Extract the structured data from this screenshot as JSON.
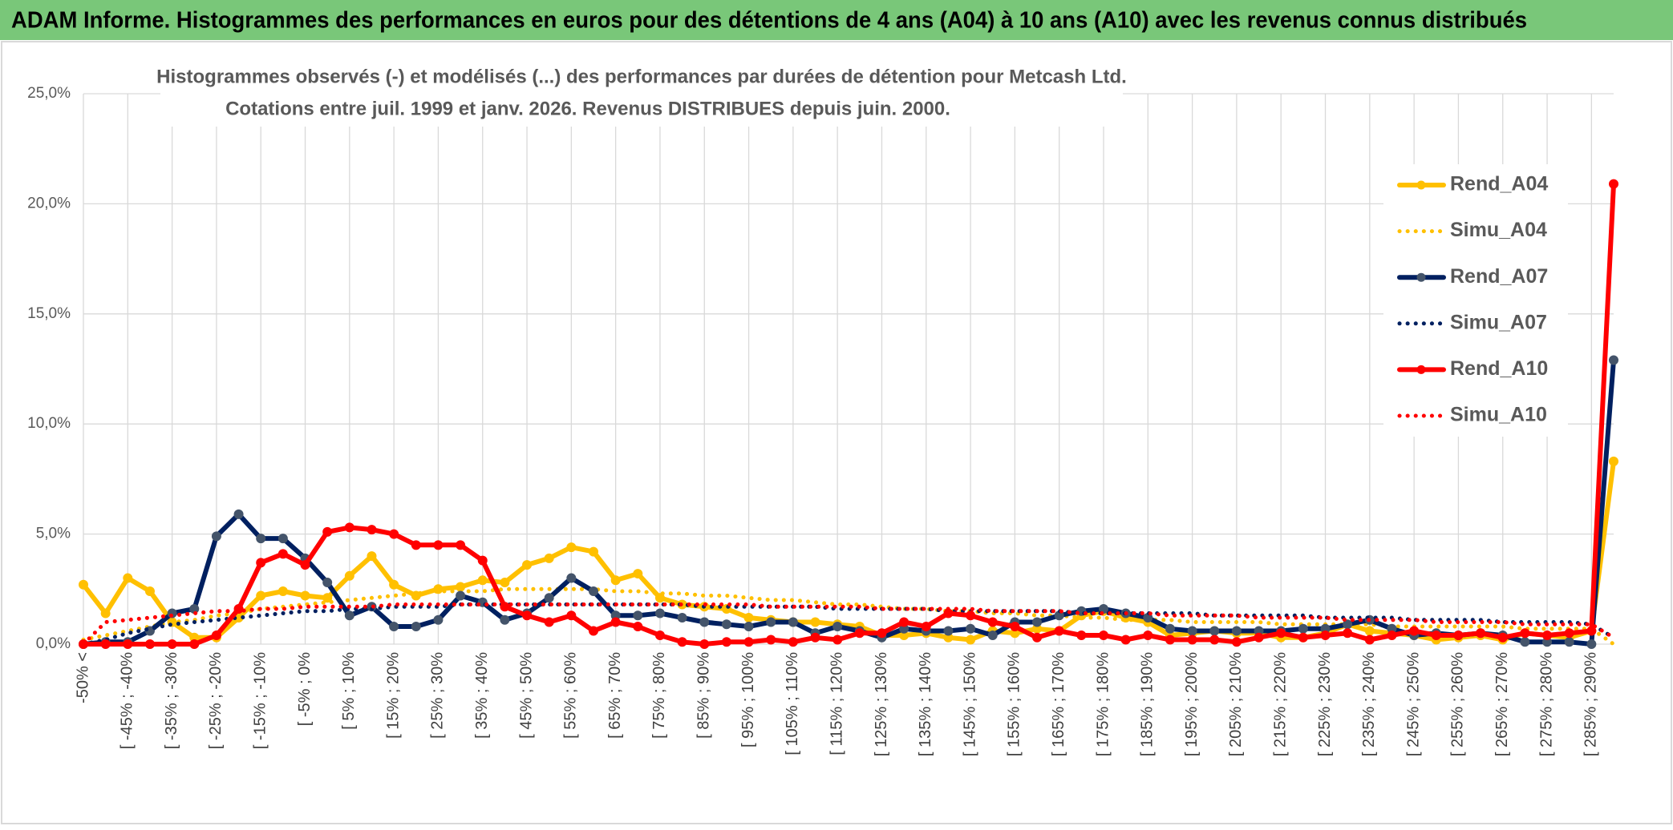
{
  "chart_data": {
    "type": "line",
    "title": "ADAM Informe. Histogrammes des performances en euros pour des détentions de 4 ans (A04) à 10 ans (A10) avec les revenus connus distribués",
    "subtitle": [
      "Histogrammes observés (-) et modélisés (...) des performances par durées de détention pour Metcash Ltd.",
      "Cotations entre juil. 1999 et janv. 2026. Revenus DISTRIBUES depuis juin. 2000."
    ],
    "categories": [
      "-50% <",
      null,
      "[ -45% ; -40%",
      null,
      "[ -35% ; -30%",
      null,
      "[ -25% ; -20%",
      null,
      "[ -15% ; -10%",
      null,
      "[ -5% ; 0%",
      null,
      "[ 5% ; 10%",
      null,
      "[ 15% ; 20%",
      null,
      "[ 25% ; 30%",
      null,
      "[ 35% ; 40%",
      null,
      "[ 45% ; 50%",
      null,
      "[ 55% ; 60%",
      null,
      "[ 65% ; 70%",
      null,
      "[ 75% ; 80%",
      null,
      "[ 85% ; 90%",
      null,
      "[ 95% ; 100%",
      null,
      "[ 105% ; 110%",
      null,
      "[ 115% ; 120%",
      null,
      "[ 125% ; 130%",
      null,
      "[ 135% ; 140%",
      null,
      "[ 145% ; 150%",
      null,
      "[ 155% ; 160%",
      null,
      "[ 165% ; 170%",
      null,
      "[ 175% ; 180%",
      null,
      "[ 185% ; 190%",
      null,
      "[ 195% ; 200%",
      null,
      "[ 205% ; 210%",
      null,
      "[ 215% ; 220%",
      null,
      "[ 225% ; 230%",
      null,
      "[ 235% ; 240%",
      null,
      "[ 245% ; 250%",
      null,
      "[ 255% ; 260%",
      null,
      "[ 265% ; 270%",
      null,
      "[ 275% ; 280%",
      null,
      "[ 285% ; 290%",
      null
    ],
    "series": [
      {
        "name": "Rend_A04",
        "color": "#ffc000",
        "line_style": "solid",
        "marker": true,
        "marker_color": "#ffc000",
        "values": [
          2.7,
          1.4,
          3.0,
          2.4,
          1.0,
          0.3,
          0.3,
          1.2,
          2.2,
          2.4,
          2.2,
          2.1,
          3.1,
          4.0,
          2.7,
          2.2,
          2.5,
          2.6,
          2.9,
          2.8,
          3.6,
          3.9,
          4.4,
          4.2,
          2.9,
          3.2,
          2.1,
          1.8,
          1.7,
          1.6,
          1.2,
          1.1,
          1.0,
          1.0,
          0.9,
          0.8,
          0.4,
          0.4,
          0.5,
          0.3,
          0.2,
          0.6,
          0.5,
          0.7,
          0.6,
          1.3,
          1.5,
          1.2,
          1.0,
          0.4,
          0.5,
          0.6,
          0.5,
          0.5,
          0.3,
          0.3,
          0.5,
          0.9,
          0.6,
          0.5,
          0.4,
          0.2,
          0.3,
          0.4,
          0.2,
          0.5,
          0.4,
          0.3,
          0.6,
          8.3
        ]
      },
      {
        "name": "Simu_A04",
        "color": "#ffc000",
        "line_style": "dotted",
        "marker": false,
        "values": [
          0.2,
          0.4,
          0.6,
          0.8,
          1.0,
          1.1,
          1.3,
          1.4,
          1.6,
          1.7,
          1.8,
          1.9,
          2.0,
          2.1,
          2.2,
          2.3,
          2.4,
          2.4,
          2.4,
          2.5,
          2.5,
          2.5,
          2.5,
          2.5,
          2.4,
          2.4,
          2.3,
          2.3,
          2.2,
          2.2,
          2.1,
          2.0,
          2.0,
          1.9,
          1.8,
          1.8,
          1.7,
          1.6,
          1.6,
          1.5,
          1.5,
          1.4,
          1.4,
          1.3,
          1.3,
          1.2,
          1.2,
          1.1,
          1.1,
          1.1,
          1.0,
          1.0,
          1.0,
          1.0,
          0.9,
          0.9,
          0.9,
          0.9,
          0.9,
          0.8,
          0.8,
          0.8,
          0.8,
          0.8,
          0.8,
          0.7,
          0.7,
          0.7,
          0.7,
          0.0
        ]
      },
      {
        "name": "Rend_A07",
        "color": "#002060",
        "line_style": "solid",
        "marker": true,
        "marker_color": "#44546a",
        "values": [
          0.0,
          0.1,
          0.1,
          0.6,
          1.4,
          1.6,
          4.9,
          5.9,
          4.8,
          4.8,
          3.9,
          2.8,
          1.3,
          1.7,
          0.8,
          0.8,
          1.1,
          2.2,
          1.9,
          1.1,
          1.4,
          2.1,
          3.0,
          2.4,
          1.3,
          1.3,
          1.4,
          1.2,
          1.0,
          0.9,
          0.8,
          1.0,
          1.0,
          0.5,
          0.8,
          0.6,
          0.3,
          0.7,
          0.6,
          0.6,
          0.7,
          0.4,
          1.0,
          1.0,
          1.3,
          1.5,
          1.6,
          1.4,
          1.2,
          0.7,
          0.6,
          0.6,
          0.6,
          0.6,
          0.6,
          0.7,
          0.7,
          0.9,
          1.1,
          0.7,
          0.4,
          0.5,
          0.4,
          0.5,
          0.4,
          0.1,
          0.1,
          0.1,
          0.0,
          12.9
        ]
      },
      {
        "name": "Simu_A07",
        "color": "#002060",
        "line_style": "dotted",
        "marker": false,
        "values": [
          0.0,
          0.2,
          0.5,
          0.7,
          0.9,
          1.0,
          1.1,
          1.2,
          1.3,
          1.4,
          1.5,
          1.5,
          1.6,
          1.6,
          1.7,
          1.7,
          1.7,
          1.8,
          1.8,
          1.8,
          1.8,
          1.8,
          1.8,
          1.8,
          1.8,
          1.8,
          1.8,
          1.8,
          1.7,
          1.7,
          1.7,
          1.7,
          1.7,
          1.7,
          1.6,
          1.6,
          1.6,
          1.6,
          1.6,
          1.5,
          1.5,
          1.5,
          1.5,
          1.5,
          1.5,
          1.4,
          1.4,
          1.4,
          1.4,
          1.4,
          1.4,
          1.3,
          1.3,
          1.3,
          1.3,
          1.3,
          1.2,
          1.2,
          1.2,
          1.2,
          1.1,
          1.1,
          1.1,
          1.1,
          1.0,
          1.0,
          1.0,
          1.0,
          0.9,
          0.3
        ]
      },
      {
        "name": "Rend_A10",
        "color": "#ff0000",
        "line_style": "solid",
        "marker": true,
        "marker_color": "#ff0000",
        "values": [
          0,
          0,
          0,
          0,
          0,
          0,
          0.4,
          1.6,
          3.7,
          4.1,
          3.6,
          5.1,
          5.3,
          5.2,
          5.0,
          4.5,
          4.5,
          4.5,
          3.8,
          1.7,
          1.3,
          1.0,
          1.3,
          0.6,
          1.0,
          0.8,
          0.4,
          0.1,
          0.0,
          0.1,
          0.1,
          0.2,
          0.1,
          0.3,
          0.2,
          0.5,
          0.5,
          1.0,
          0.8,
          1.4,
          1.3,
          1.0,
          0.8,
          0.3,
          0.6,
          0.4,
          0.4,
          0.2,
          0.4,
          0.2,
          0.2,
          0.2,
          0.1,
          0.3,
          0.5,
          0.3,
          0.4,
          0.5,
          0.2,
          0.4,
          0.6,
          0.4,
          0.4,
          0.5,
          0.3,
          0.5,
          0.4,
          0.5,
          0.6,
          20.9
        ]
      },
      {
        "name": "Simu_A10",
        "color": "#ff0000",
        "line_style": "dotted",
        "marker": false,
        "values": [
          0.0,
          1.0,
          1.1,
          1.2,
          1.3,
          1.4,
          1.5,
          1.5,
          1.6,
          1.6,
          1.7,
          1.7,
          1.7,
          1.7,
          1.8,
          1.8,
          1.8,
          1.8,
          1.8,
          1.8,
          1.8,
          1.8,
          1.8,
          1.8,
          1.8,
          1.8,
          1.8,
          1.8,
          1.8,
          1.8,
          1.8,
          1.7,
          1.7,
          1.7,
          1.7,
          1.7,
          1.6,
          1.6,
          1.6,
          1.6,
          1.6,
          1.5,
          1.5,
          1.5,
          1.5,
          1.4,
          1.4,
          1.4,
          1.4,
          1.3,
          1.3,
          1.3,
          1.3,
          1.2,
          1.2,
          1.2,
          1.2,
          1.1,
          1.1,
          1.1,
          1.1,
          1.0,
          1.0,
          1.0,
          1.0,
          0.9,
          0.9,
          0.9,
          0.9,
          0.3
        ]
      }
    ],
    "ylim": [
      0,
      25
    ],
    "yticks": [
      {
        "value": 0,
        "label": "0,0%"
      },
      {
        "value": 5,
        "label": "5,0%"
      },
      {
        "value": 10,
        "label": "10,0%"
      },
      {
        "value": 15,
        "label": "15,0%"
      },
      {
        "value": 20,
        "label": "20,0%"
      },
      {
        "value": 25,
        "label": "25,0%"
      }
    ],
    "grid": true,
    "legend": "right"
  }
}
